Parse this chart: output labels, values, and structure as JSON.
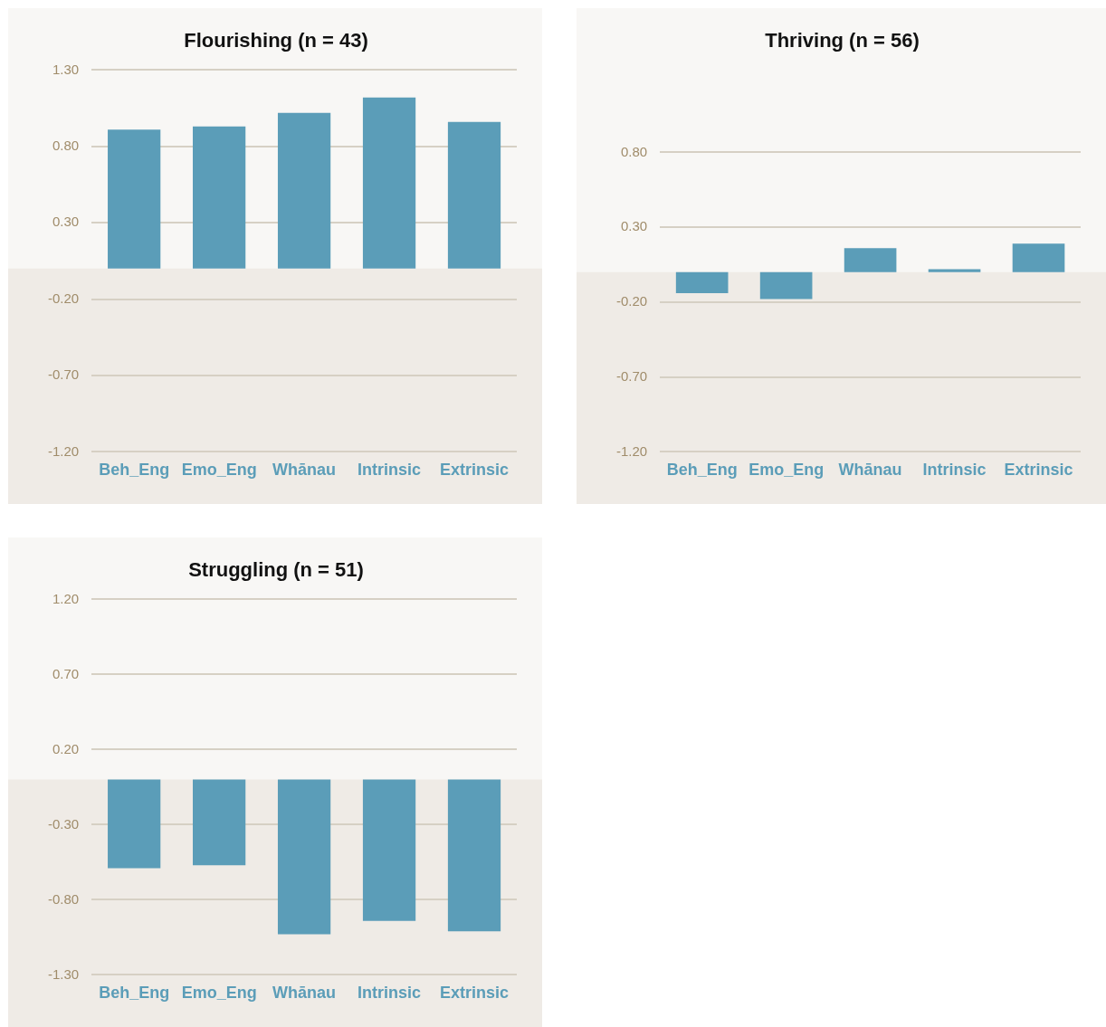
{
  "chart_data": [
    {
      "type": "bar",
      "title": "Flourishing (n = 43)",
      "categories": [
        "Beh_Eng",
        "Emo_Eng",
        "Whānau",
        "Intrinsic",
        "Extrinsic"
      ],
      "values": [
        0.91,
        0.93,
        1.02,
        1.12,
        0.96
      ],
      "color": "#5b9db8",
      "ylim": [
        -1.2,
        1.3
      ],
      "yticks": [
        {
          "value": -1.2,
          "label": "-1.20"
        },
        {
          "value": -0.7,
          "label": "-0.70"
        },
        {
          "value": -0.2,
          "label": "-0.20"
        },
        {
          "value": 0.3,
          "label": "0.30"
        },
        {
          "value": 0.8,
          "label": "0.80"
        },
        {
          "value": 1.3,
          "label": "1.30"
        }
      ],
      "grid": "y",
      "legend": false,
      "bands": [
        {
          "axis": "y",
          "from": -1.2,
          "to": 0,
          "color": "#efebe6"
        }
      ]
    },
    {
      "type": "bar",
      "title": "Thriving (n = 56)",
      "categories": [
        "Beh_Eng",
        "Emo_Eng",
        "Whānau",
        "Intrinsic",
        "Extrinsic"
      ],
      "values": [
        -0.14,
        -0.18,
        0.16,
        0.02,
        0.19
      ],
      "color": "#5b9db8",
      "ylim": [
        -1.2,
        0.8
      ],
      "yticks": [
        {
          "value": -1.2,
          "label": "-1.20"
        },
        {
          "value": -0.7,
          "label": "-0.70"
        },
        {
          "value": -0.2,
          "label": "-0.20"
        },
        {
          "value": 0.3,
          "label": "0.30"
        },
        {
          "value": 0.8,
          "label": "0.80"
        }
      ],
      "grid": "y",
      "legend": false,
      "bands": [
        {
          "axis": "y",
          "from": -1.2,
          "to": 0,
          "color": "#efebe6"
        }
      ]
    },
    {
      "type": "bar",
      "title": "Struggling (n = 51)",
      "categories": [
        "Beh_Eng",
        "Emo_Eng",
        "Whānau",
        "Intrinsic",
        "Extrinsic"
      ],
      "values": [
        -0.59,
        -0.57,
        -1.03,
        -0.94,
        -1.01
      ],
      "color": "#5b9db8",
      "ylim": [
        -1.3,
        1.2
      ],
      "yticks": [
        {
          "value": -1.3,
          "label": "-1.30"
        },
        {
          "value": -0.8,
          "label": "-0.80"
        },
        {
          "value": -0.3,
          "label": "-0.30"
        },
        {
          "value": 0.2,
          "label": "0.20"
        },
        {
          "value": 0.7,
          "label": "0.70"
        },
        {
          "value": 1.2,
          "label": "1.20"
        }
      ],
      "grid": "y",
      "legend": false,
      "bands": [
        {
          "axis": "y",
          "from": -1.3,
          "to": 0,
          "color": "#efebe6"
        }
      ]
    }
  ]
}
